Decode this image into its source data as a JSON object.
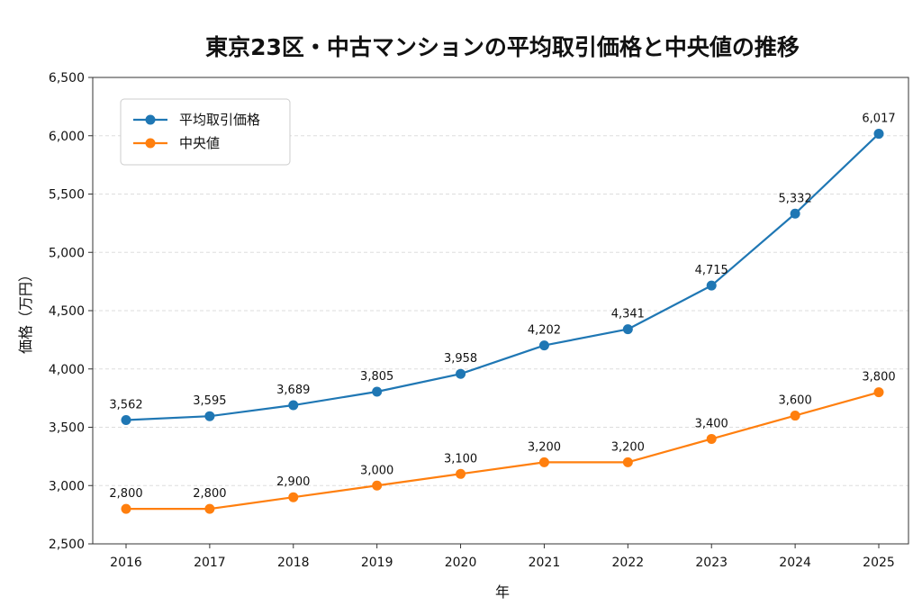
{
  "chart_data": {
    "type": "line",
    "title": "東京23区・中古マンションの平均取引価格と中央値の推移",
    "xlabel": "年",
    "ylabel": "価格（万円）",
    "categories": [
      "2016",
      "2017",
      "2018",
      "2019",
      "2020",
      "2021",
      "2022",
      "2023",
      "2024",
      "2025"
    ],
    "ylim": [
      2500,
      6500
    ],
    "yticks": [
      2500,
      3000,
      3500,
      4000,
      4500,
      5000,
      5500,
      6000,
      6500
    ],
    "ytick_labels": [
      "2,500",
      "3,000",
      "3,500",
      "4,000",
      "4,500",
      "5,000",
      "5,500",
      "6,000",
      "6,500"
    ],
    "grid": "horizontal-dashed",
    "legend_position": "top-left",
    "series": [
      {
        "name": "平均取引価格",
        "color": "#1f77b4",
        "values": [
          3562,
          3595,
          3689,
          3805,
          3958,
          4202,
          4341,
          4715,
          5332,
          6017
        ],
        "labels": [
          "3,562",
          "3,595",
          "3,689",
          "3,805",
          "3,958",
          "4,202",
          "4,341",
          "4,715",
          "5,332",
          "6,017"
        ]
      },
      {
        "name": "中央値",
        "color": "#ff7f0e",
        "values": [
          2800,
          2800,
          2900,
          3000,
          3100,
          3200,
          3200,
          3400,
          3600,
          3800
        ],
        "labels": [
          "2,800",
          "2,800",
          "2,900",
          "3,000",
          "3,100",
          "3,200",
          "3,200",
          "3,400",
          "3,600",
          "3,800"
        ]
      }
    ]
  }
}
